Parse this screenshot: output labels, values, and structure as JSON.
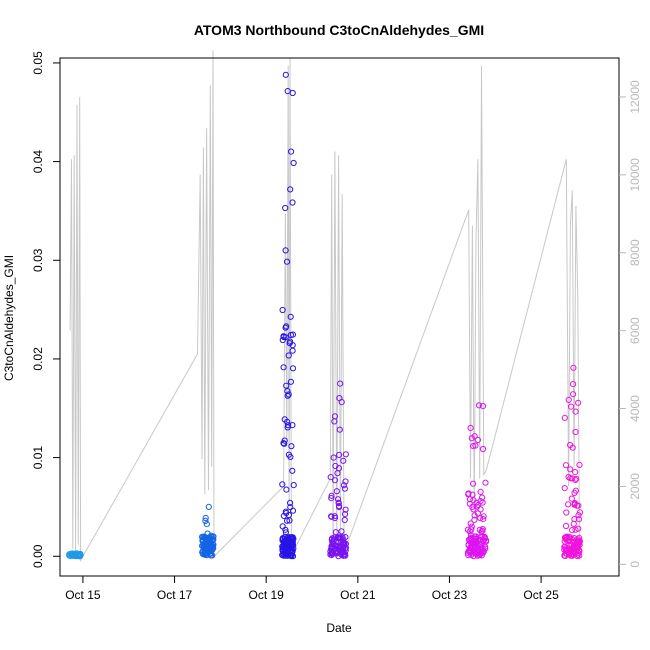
{
  "chart_data": {
    "type": "scatter",
    "title": "ATOM3 Northbound C3toCnAldehydes_GMI",
    "xlabel": "Date",
    "ylabel": "C3toCnAldehydes_GMI",
    "xlim": [
      14.5,
      26.7
    ],
    "ylim": [
      -0.002,
      0.0505
    ],
    "y2lim": [
      -300,
      13000
    ],
    "x_ticks": [
      15,
      17,
      19,
      21,
      23,
      25
    ],
    "x_tick_labels": [
      "Oct 15",
      "Oct 17",
      "Oct 19",
      "Oct 21",
      "Oct 23",
      "Oct 25"
    ],
    "y_ticks": [
      0.0,
      0.01,
      0.02,
      0.03,
      0.04,
      0.05
    ],
    "y_tick_labels": [
      "0.00",
      "0.01",
      "0.02",
      "0.03",
      "0.04",
      "0.05"
    ],
    "y2_ticks": [
      0,
      2000,
      4000,
      6000,
      8000,
      10000,
      12000
    ],
    "y2_tick_labels": [
      "0",
      "2000",
      "4000",
      "6000",
      "8000",
      "10000",
      "12000"
    ],
    "altitude_color": "#c8c8c8",
    "flights": [
      {
        "start": 14.7,
        "end": 14.95,
        "color": "#1e9be6",
        "max": 0.0003,
        "count": 40,
        "altitude": [
          [
            14.72,
            6000
          ],
          [
            14.75,
            10400
          ],
          [
            14.78,
            400
          ],
          [
            14.81,
            10500
          ],
          [
            14.84,
            300
          ],
          [
            14.87,
            11800
          ],
          [
            14.9,
            500
          ],
          [
            14.93,
            12000
          ],
          [
            14.95,
            100
          ]
        ]
      },
      {
        "start": 17.6,
        "end": 17.85,
        "color": "#1464e6",
        "max": 0.005,
        "count": 90,
        "altitude": [
          [
            17.5,
            5400
          ],
          [
            17.56,
            10000
          ],
          [
            17.6,
            2700
          ],
          [
            17.63,
            10700
          ],
          [
            17.66,
            1800
          ],
          [
            17.7,
            11200
          ],
          [
            17.74,
            1900
          ],
          [
            17.78,
            12300
          ],
          [
            17.81,
            2500
          ],
          [
            17.84,
            13200
          ],
          [
            17.86,
            200
          ]
        ]
      },
      {
        "start": 19.35,
        "end": 19.6,
        "color": "#2814e6",
        "max": 0.0488,
        "count": 160,
        "altitude": [
          [
            19.38,
            2000
          ],
          [
            19.42,
            9000
          ],
          [
            19.45,
            3000
          ],
          [
            19.48,
            12800
          ],
          [
            19.5,
            1500
          ],
          [
            19.52,
            13000
          ],
          [
            19.55,
            500
          ],
          [
            19.58,
            300
          ]
        ]
      },
      {
        "start": 20.4,
        "end": 20.75,
        "color": "#7814f0",
        "max": 0.0175,
        "count": 110,
        "altitude": [
          [
            20.4,
            2200
          ],
          [
            20.43,
            10000
          ],
          [
            20.46,
            600
          ],
          [
            20.5,
            10600
          ],
          [
            20.54,
            700
          ],
          [
            20.58,
            10500
          ],
          [
            20.62,
            800
          ],
          [
            20.66,
            9500
          ],
          [
            20.7,
            300
          ]
        ]
      },
      {
        "start": 23.4,
        "end": 23.8,
        "color": "#dc14f0",
        "max": 0.0153,
        "count": 120,
        "altitude": [
          [
            23.42,
            9100
          ],
          [
            23.46,
            2200
          ],
          [
            23.5,
            8700
          ],
          [
            23.54,
            1400
          ],
          [
            23.58,
            8400
          ],
          [
            23.62,
            10400
          ],
          [
            23.66,
            2200
          ],
          [
            23.7,
            12800
          ],
          [
            23.75,
            2300
          ],
          [
            23.8,
            2400
          ]
        ]
      },
      {
        "start": 25.5,
        "end": 25.85,
        "color": "#f014dc",
        "max": 0.0191,
        "count": 120,
        "altitude": [
          [
            25.55,
            10400
          ],
          [
            25.6,
            2000
          ],
          [
            25.64,
            8700
          ],
          [
            25.68,
            9600
          ],
          [
            25.72,
            2500
          ],
          [
            25.76,
            9200
          ],
          [
            25.8,
            6800
          ],
          [
            25.84,
            300
          ]
        ]
      }
    ]
  }
}
